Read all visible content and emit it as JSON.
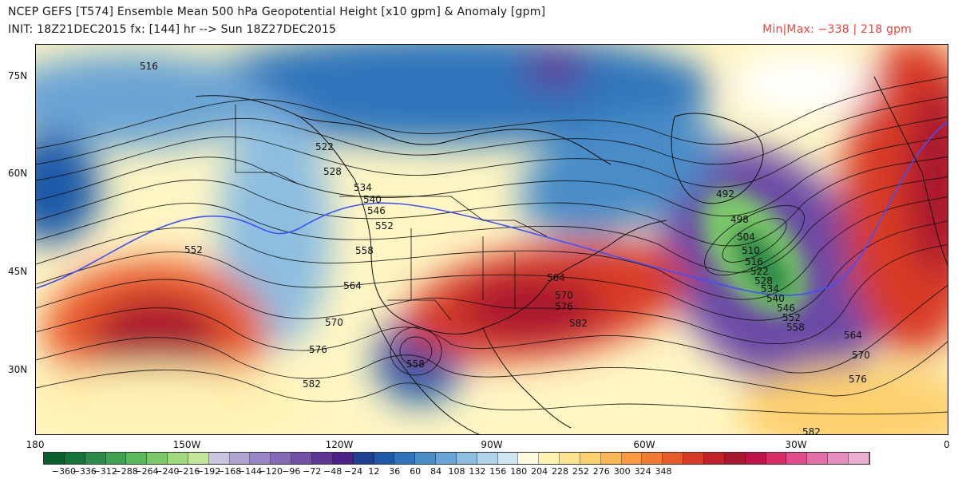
{
  "header": {
    "line1": "NCEP GEFS [T574] Ensemble Mean 500 hPa Geopotential Height [x10 gpm] & Anomaly [gpm]",
    "line2": "INIT: 18Z21DEC2015 fx: [144] hr --> Sun 18Z27DEC2015",
    "minmax": "Min|Max: −338 |  218 gpm"
  },
  "axes": {
    "lat_labels": [
      "75N",
      "60N",
      "45N",
      "30N"
    ],
    "lon_labels": [
      "180",
      "150W",
      "120W",
      "90W",
      "60W",
      "30W",
      "0"
    ]
  },
  "contour_labels": [
    "516",
    "522",
    "528",
    "534",
    "540",
    "546",
    "552",
    "558",
    "564",
    "570",
    "576",
    "582",
    "492",
    "498",
    "504",
    "510",
    "516",
    "522",
    "528",
    "534",
    "540",
    "546",
    "552",
    "558",
    "564",
    "570",
    "576",
    "582",
    "552",
    "558",
    "564",
    "570",
    "576",
    "582"
  ],
  "colorbar": {
    "ticks": [
      "−360",
      "−336",
      "−312",
      "−288",
      "−264",
      "−240",
      "−216",
      "−192",
      "−168",
      "−144",
      "−120",
      "−96",
      "−72",
      "−48",
      "−24",
      "12",
      "36",
      "60",
      "84",
      "108",
      "132",
      "156",
      "180",
      "204",
      "228",
      "252",
      "276",
      "300",
      "324",
      "348"
    ],
    "colors": [
      "#0b5e2e",
      "#13743a",
      "#2a8c48",
      "#3fa353",
      "#5cb85c",
      "#7cc86a",
      "#9fd87e",
      "#c2e59a",
      "#c9c4e0",
      "#b1a5d4",
      "#9a86c6",
      "#8569b6",
      "#7150a6",
      "#5e3796",
      "#4a2188",
      "#1e3f92",
      "#1f5aa8",
      "#2f74bb",
      "#4a8cc8",
      "#6aa4d4",
      "#8dbde0",
      "#b0d4ea",
      "#cfe5f1",
      "#fffbe1",
      "#fff2b3",
      "#ffe38d",
      "#fdd06e",
      "#fbb754",
      "#f99a42",
      "#f27a35",
      "#e95a2b",
      "#d83a25",
      "#c22128",
      "#a8172d",
      "#c0134a",
      "#d92a68",
      "#e34c8a",
      "#e46ea8",
      "#e48fc0",
      "#eaaed3"
    ]
  },
  "map_palette": {
    "deep_neg": "#5e2d96",
    "mid_neg": "#2f74bb",
    "light_neg": "#aacde5",
    "green_neg": "#7cc86a",
    "pos_light": "#fff0a8",
    "pos_mid": "#f99a42",
    "pos_high": "#d83a25",
    "pos_max": "#a8172d",
    "land_line": "#111111",
    "contour": "#111111",
    "ref_line": "#3f51ff"
  }
}
